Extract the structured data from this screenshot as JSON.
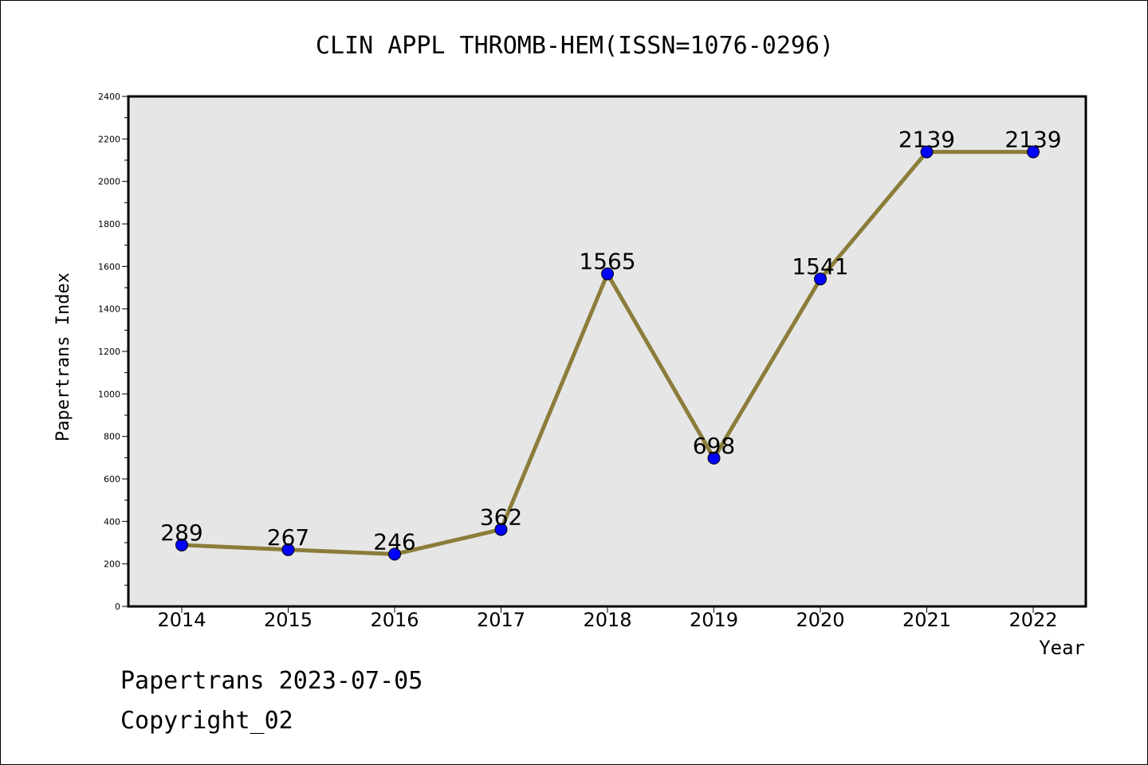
{
  "chart_data": {
    "type": "line",
    "title": "CLIN APPL THROMB-HEM(ISSN=1076-0296)",
    "xlabel": "Year",
    "ylabel": "Papertrans Index",
    "categories": [
      "2014",
      "2015",
      "2016",
      "2017",
      "2018",
      "2019",
      "2020",
      "2021",
      "2022"
    ],
    "series": [
      {
        "values": [
          289,
          267,
          246,
          362,
          1565,
          698,
          1541,
          2139,
          2139
        ]
      }
    ],
    "ylim": [
      0,
      2400
    ],
    "yticks": [
      0,
      200,
      400,
      600,
      800,
      1000,
      1200,
      1400,
      1600,
      1800,
      2000,
      2200,
      2400
    ],
    "grid": false,
    "line_color": "#8B7D3A",
    "marker_color": "#0000FF",
    "plot_background": "#E6E6E6"
  },
  "footer": {
    "line1": "Papertrans 2023-07-05",
    "line2": "Copyright_02"
  }
}
